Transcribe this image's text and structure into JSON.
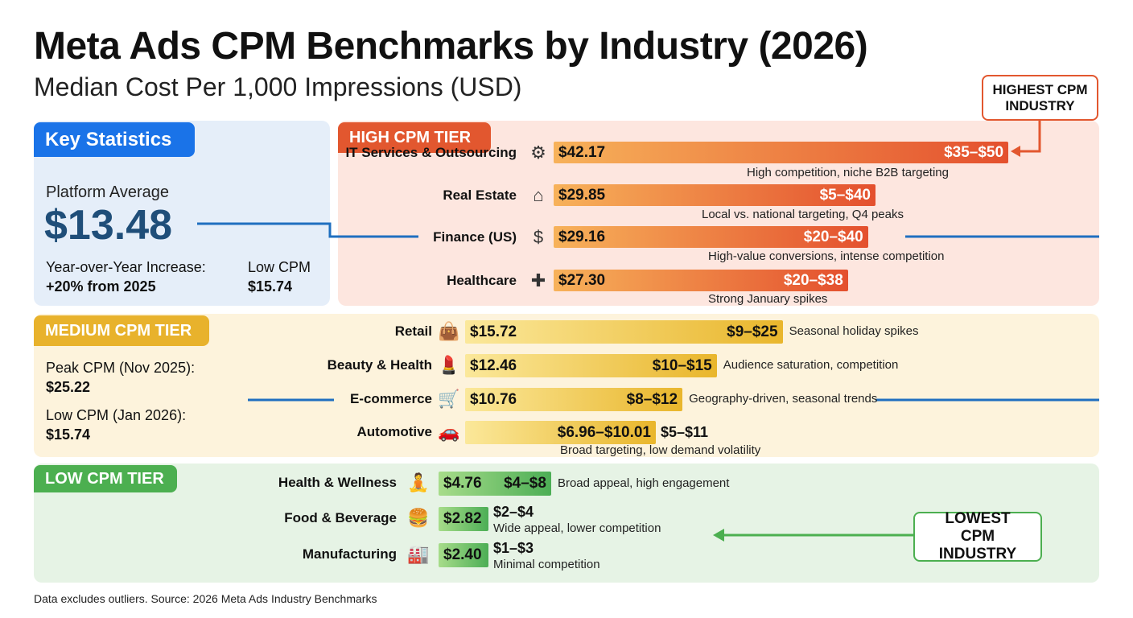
{
  "title": "Meta Ads CPM Benchmarks by Industry (2026)",
  "subtitle": "Median Cost Per 1,000 Impressions (USD)",
  "key_stats": {
    "heading": "Key Statistics",
    "platform_label": "Platform Average",
    "platform_value": "$13.48",
    "yoy_label": "Year-over-Year Increase:",
    "yoy_value": "+20% from 2025",
    "low_label": "Low CPM",
    "low_value": "$15.74"
  },
  "medium_stats": {
    "peak_label": "Peak CPM (Nov 2025):",
    "peak_value": "$25.22",
    "low_label": "Low CPM (Jan 2026):",
    "low_value": "$15.74"
  },
  "callouts": {
    "highest": "HIGHEST CPM INDUSTRY",
    "lowest": "LOWEST CPM INDUSTRY"
  },
  "colors": {
    "high": "#e4502e",
    "medium": "#e9b62c",
    "low": "#4cae55",
    "key": "#1a73e8"
  },
  "footer": "Data excludes outliers. Source: 2026 Meta Ads Industry Benchmarks",
  "chart_data": {
    "type": "bar",
    "tiers": [
      {
        "name": "HIGH CPM TIER",
        "rows": [
          {
            "industry": "IT Services & Outsourcing",
            "icon": "gear-code-icon",
            "median_label": "$42.17",
            "median": 42.17,
            "range": "$35–$50",
            "note": "High competition, niche B2B targeting"
          },
          {
            "industry": "Real Estate",
            "icon": "house-icon",
            "median_label": "$29.85",
            "median": 29.85,
            "range": "$5–$40",
            "note": "Local vs. national targeting, Q4 peaks"
          },
          {
            "industry": "Finance (US)",
            "icon": "hand-coin-icon",
            "median_label": "$29.16",
            "median": 29.16,
            "range": "$20–$40",
            "note": "High-value conversions, intense competition"
          },
          {
            "industry": "Healthcare",
            "icon": "medical-cross-icon",
            "median_label": "$27.30",
            "median": 27.3,
            "range": "$20–$38",
            "note": "Strong January spikes"
          }
        ]
      },
      {
        "name": "MEDIUM CPM TIER",
        "rows": [
          {
            "industry": "Retail",
            "icon": "shopping-bag-icon",
            "median_label": "$15.72",
            "median": 15.72,
            "range": "$9–$25",
            "note": "Seasonal holiday spikes"
          },
          {
            "industry": "Beauty & Health",
            "icon": "lipstick-leaf-icon",
            "median_label": "$12.46",
            "median": 12.46,
            "range": "$10–$15",
            "note": "Audience saturation, competition"
          },
          {
            "industry": "E-commerce",
            "icon": "cart-icon",
            "median_label": "$10.76",
            "median": 10.76,
            "range": "$8–$12",
            "note": "Geography-driven, seasonal trends"
          },
          {
            "industry": "Automotive",
            "icon": "car-icon",
            "median_label": "$6.96–$10.01",
            "median": 10.01,
            "range": "$5–$11",
            "note": "Broad targeting, low demand volatility"
          }
        ]
      },
      {
        "name": "LOW CPM TIER",
        "rows": [
          {
            "industry": "Health & Wellness",
            "icon": "meditation-icon",
            "median_label": "$4.76",
            "median": 4.76,
            "range": "$4–$8",
            "note": "Broad appeal, high engagement"
          },
          {
            "industry": "Food & Beverage",
            "icon": "burger-drink-icon",
            "median_label": "$2.82",
            "median": 2.82,
            "range": "$2–$4",
            "note": "Wide appeal, lower competition"
          },
          {
            "industry": "Manufacturing",
            "icon": "factory-icon",
            "median_label": "$2.40",
            "median": 2.4,
            "range": "$1–$3",
            "note": "Minimal competition"
          }
        ]
      }
    ]
  }
}
